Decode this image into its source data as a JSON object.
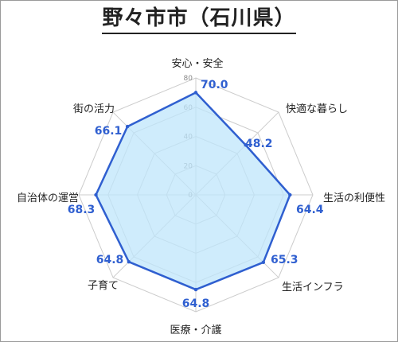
{
  "title": "野々市市（石川県）",
  "chart_data": {
    "type": "radar",
    "title": "野々市市（石川県）",
    "axes": [
      "安心・安全",
      "快適な暮らし",
      "生活の利便性",
      "生活インフラ",
      "医療・介護",
      "子育て",
      "自治体の運営",
      "街の活力"
    ],
    "values": [
      70.0,
      48.2,
      64.4,
      65.3,
      64.8,
      64.8,
      68.3,
      66.1
    ],
    "value_labels": [
      "70.0",
      "48.2",
      "64.4",
      "65.3",
      "64.8",
      "64.8",
      "68.3",
      "66.1"
    ],
    "range": [
      0,
      80
    ],
    "ticks": [
      0,
      20,
      40,
      60,
      80
    ],
    "grid": true,
    "legend": "none",
    "colors": {
      "line": "#2f5fd0",
      "fill": "#bfe6fb",
      "grid": "#cccccc",
      "value_text": "#2f5fd0"
    }
  }
}
